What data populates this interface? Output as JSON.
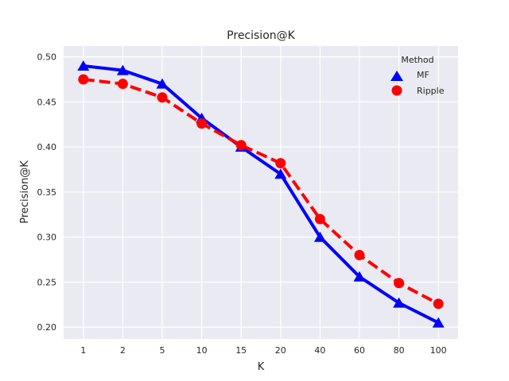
{
  "chart_data": {
    "type": "line",
    "title": "Precision@K",
    "xlabel": "K",
    "ylabel": "Precision@K",
    "categories": [
      "1",
      "2",
      "5",
      "10",
      "15",
      "20",
      "40",
      "60",
      "80",
      "100"
    ],
    "ylim": [
      0.187,
      0.512
    ],
    "yticks": [
      "0.20",
      "0.25",
      "0.30",
      "0.35",
      "0.40",
      "0.45",
      "0.50"
    ],
    "grid": true,
    "legend": {
      "title": "Method",
      "placement": "top-right"
    },
    "series": [
      {
        "name": "MF",
        "values": [
          0.49,
          0.485,
          0.47,
          0.432,
          0.4,
          0.37,
          0.3,
          0.256,
          0.227,
          0.205
        ],
        "color": "#0000ff",
        "marker": "triangle",
        "linestyle": "solid"
      },
      {
        "name": "Ripple",
        "values": [
          0.475,
          0.47,
          0.455,
          0.426,
          0.402,
          0.382,
          0.32,
          0.28,
          0.249,
          0.226
        ],
        "color": "#ff0000",
        "marker": "circle",
        "linestyle": "dashed"
      }
    ]
  }
}
